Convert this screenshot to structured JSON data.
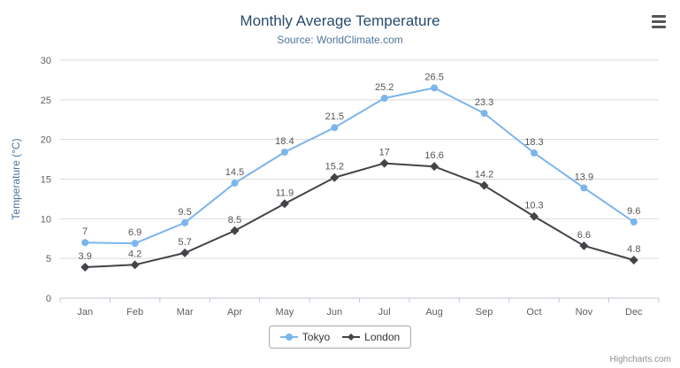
{
  "chart": {
    "credits": "Highcharts.com",
    "export_menu_icon": "hamburger-menu"
  },
  "chart_data": {
    "type": "line",
    "title": "Monthly Average Temperature",
    "subtitle": "Source: WorldClimate.com",
    "categories": [
      "Jan",
      "Feb",
      "Mar",
      "Apr",
      "May",
      "Jun",
      "Jul",
      "Aug",
      "Sep",
      "Oct",
      "Nov",
      "Dec"
    ],
    "series": [
      {
        "name": "Tokyo",
        "color": "#7cb5ec",
        "marker": "circle",
        "values": [
          7,
          6.9,
          9.5,
          14.5,
          18.4,
          21.5,
          25.2,
          26.5,
          23.3,
          18.3,
          13.9,
          9.6
        ]
      },
      {
        "name": "London",
        "color": "#434348",
        "marker": "diamond",
        "values": [
          3.9,
          4.2,
          5.7,
          8.5,
          11.9,
          15.2,
          17,
          16.6,
          14.2,
          10.3,
          6.6,
          4.8
        ]
      }
    ],
    "xlabel": "",
    "ylabel": "Temperature (°C)",
    "ylim": [
      0,
      30
    ],
    "yticks": [
      0,
      5,
      10,
      15,
      20,
      25,
      30
    ],
    "grid": true,
    "legend_position": "bottom",
    "colors": {
      "gridline": "#dbdbdb",
      "axis_line": "#c0c8d0",
      "axis_text": "#606060",
      "title_text": "#274b6d",
      "subtitle_text": "#4d759e"
    }
  }
}
